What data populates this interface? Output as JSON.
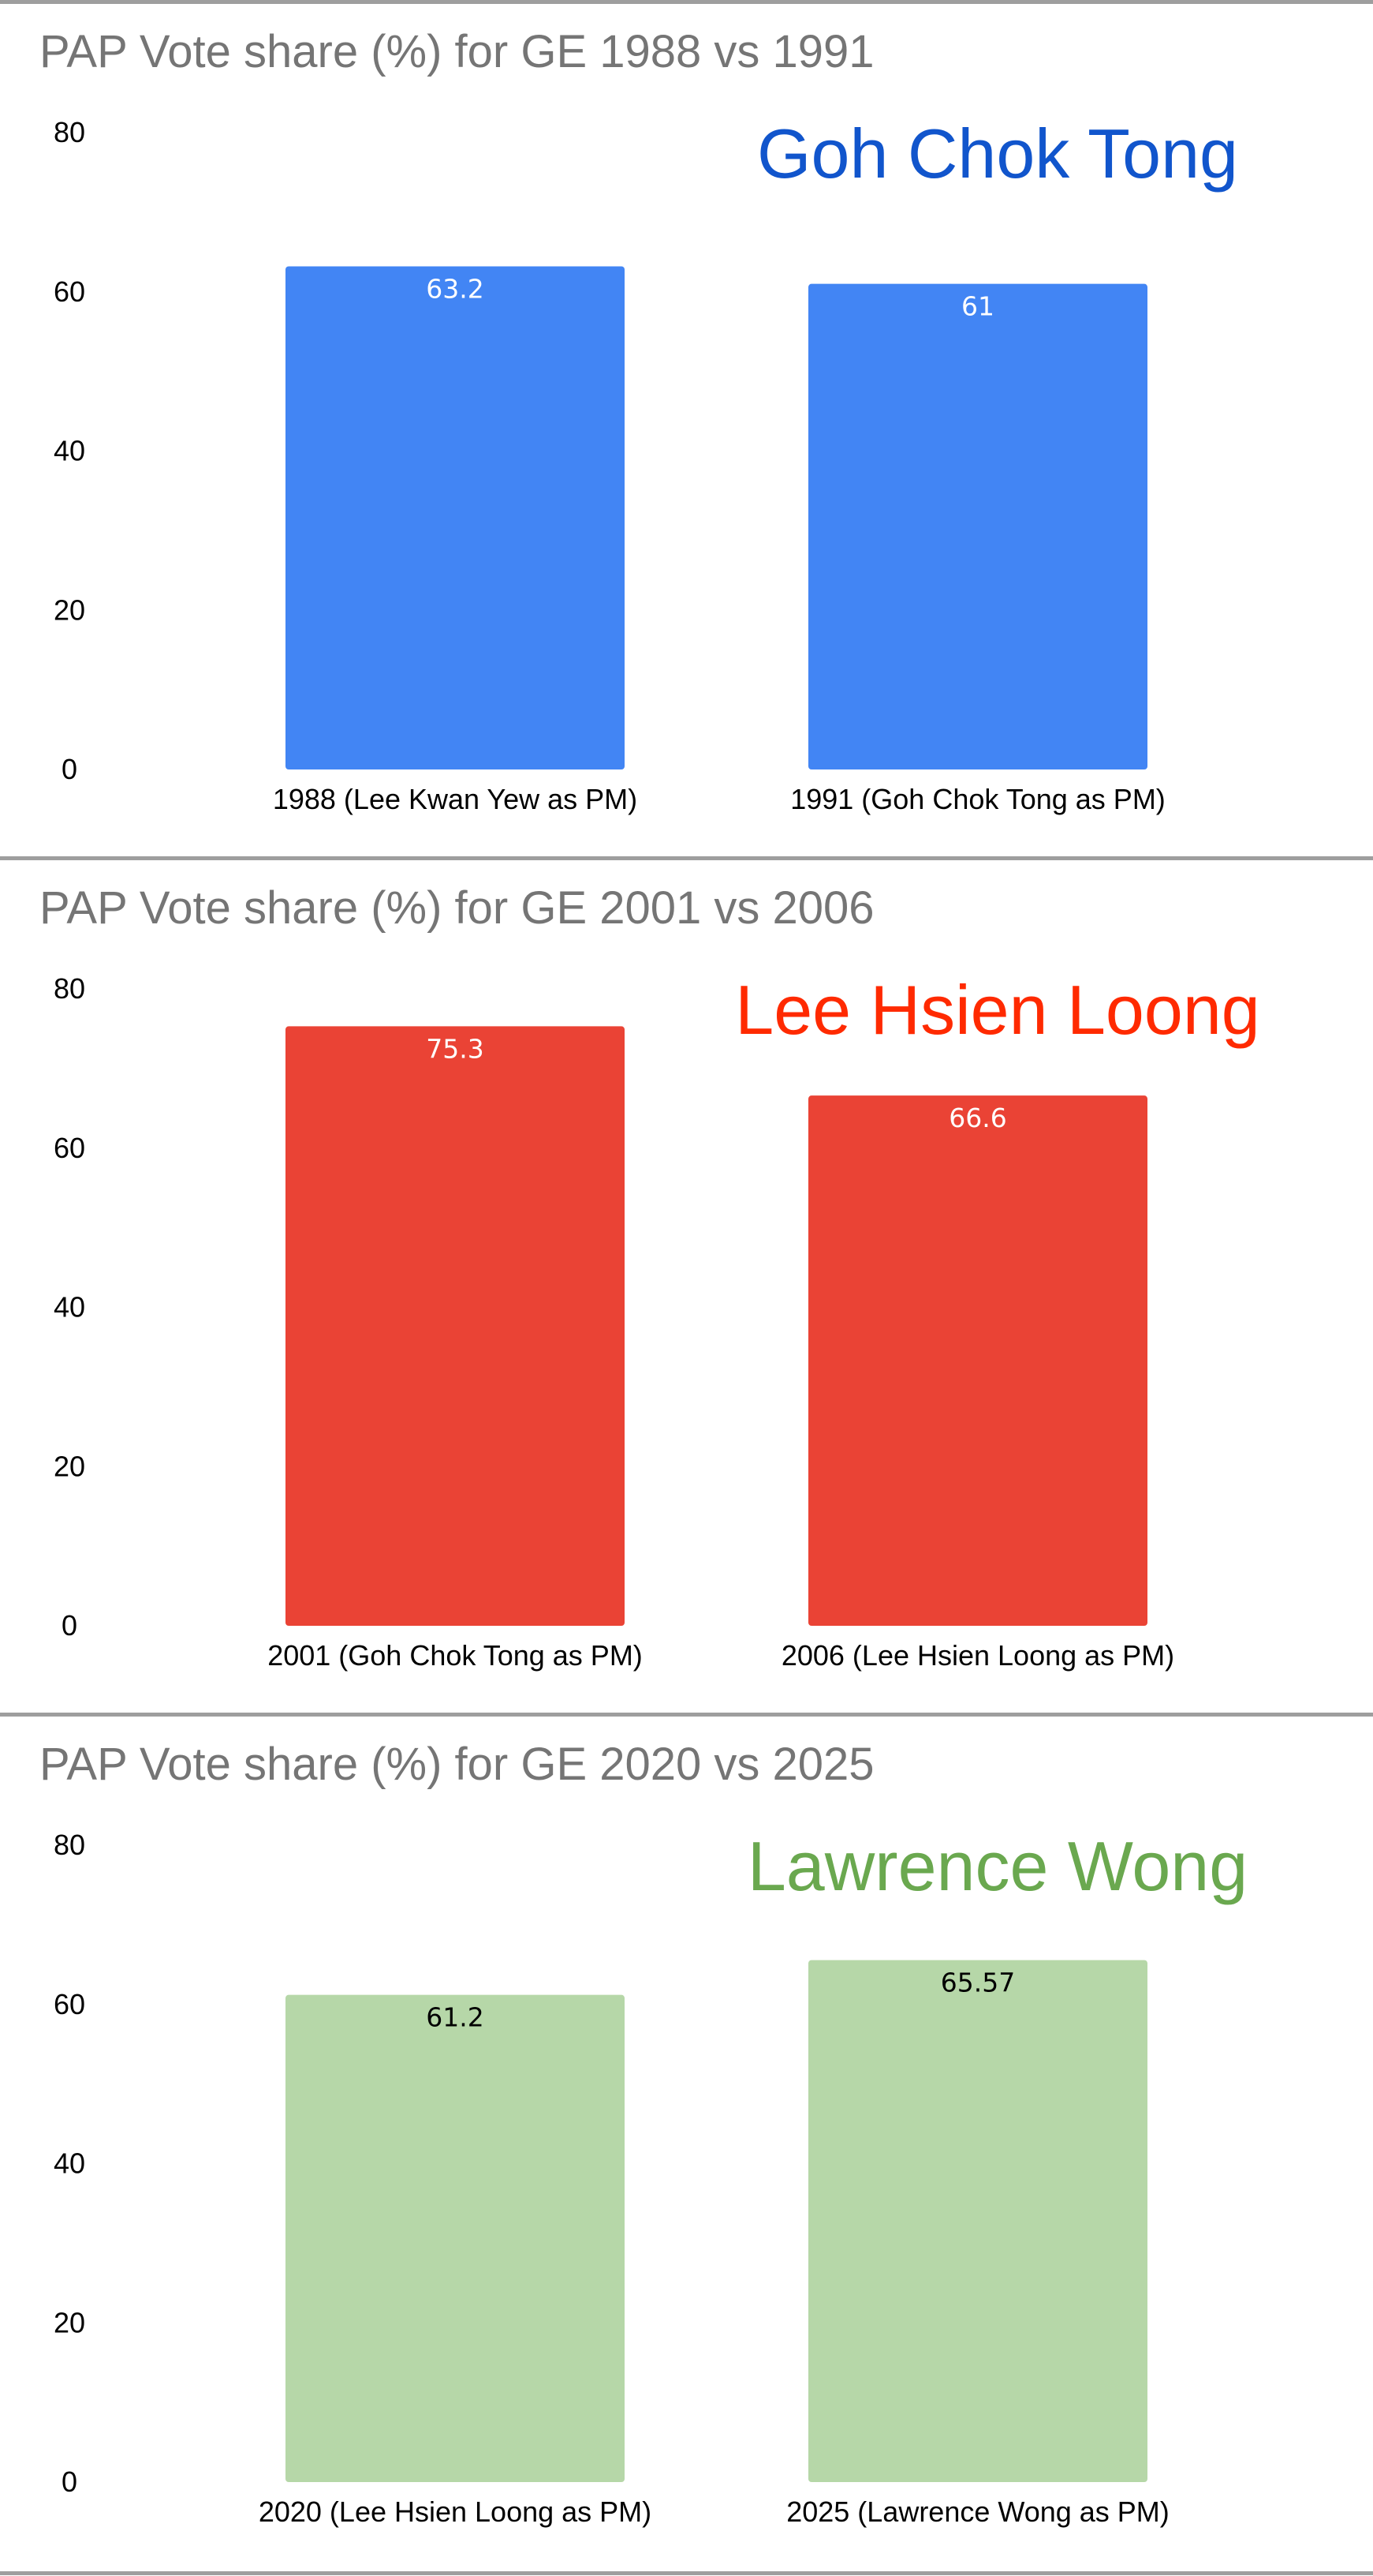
{
  "chart_data": [
    {
      "type": "bar",
      "title": "PAP Vote share (%) for GE 1988 vs 1991",
      "categories": [
        "1988 (Lee Kwan Yew as PM)",
        "1991 (Goh Chok Tong as PM)"
      ],
      "values": [
        63.2,
        61
      ],
      "value_labels": [
        "63.2",
        "61"
      ],
      "ylim": [
        0,
        80
      ],
      "yticks": [
        "0",
        "20",
        "40",
        "60",
        "80"
      ],
      "bar_color": "#4285f4",
      "label_color": "#ffffff",
      "annotation": "Goh Chok Tong",
      "annotation_color": "#1155cc",
      "grid": false,
      "legend": "none"
    },
    {
      "type": "bar",
      "title": "PAP Vote share (%) for GE 2001 vs 2006",
      "categories": [
        "2001 (Goh Chok Tong as PM)",
        "2006 (Lee Hsien Loong as PM)"
      ],
      "values": [
        75.3,
        66.6
      ],
      "value_labels": [
        "75.3",
        "66.6"
      ],
      "ylim": [
        0,
        80
      ],
      "yticks": [
        "0",
        "20",
        "40",
        "60",
        "80"
      ],
      "bar_color": "#ea4335",
      "label_color": "#ffffff",
      "annotation": "Lee Hsien Loong",
      "annotation_color": "#ff2a00",
      "grid": false,
      "legend": "none"
    },
    {
      "type": "bar",
      "title": "PAP Vote share (%) for GE 2020 vs 2025",
      "categories": [
        "2020 (Lee Hsien Loong as PM)",
        "2025 (Lawrence Wong as PM)"
      ],
      "values": [
        61.2,
        65.57
      ],
      "value_labels": [
        "61.2",
        "65.57"
      ],
      "ylim": [
        0,
        80
      ],
      "yticks": [
        "0",
        "20",
        "40",
        "60",
        "80"
      ],
      "bar_color": "#b6d7a8",
      "label_color": "#000000",
      "annotation": "Lawrence Wong",
      "annotation_color": "#6aa84f",
      "grid": false,
      "legend": "none"
    }
  ]
}
